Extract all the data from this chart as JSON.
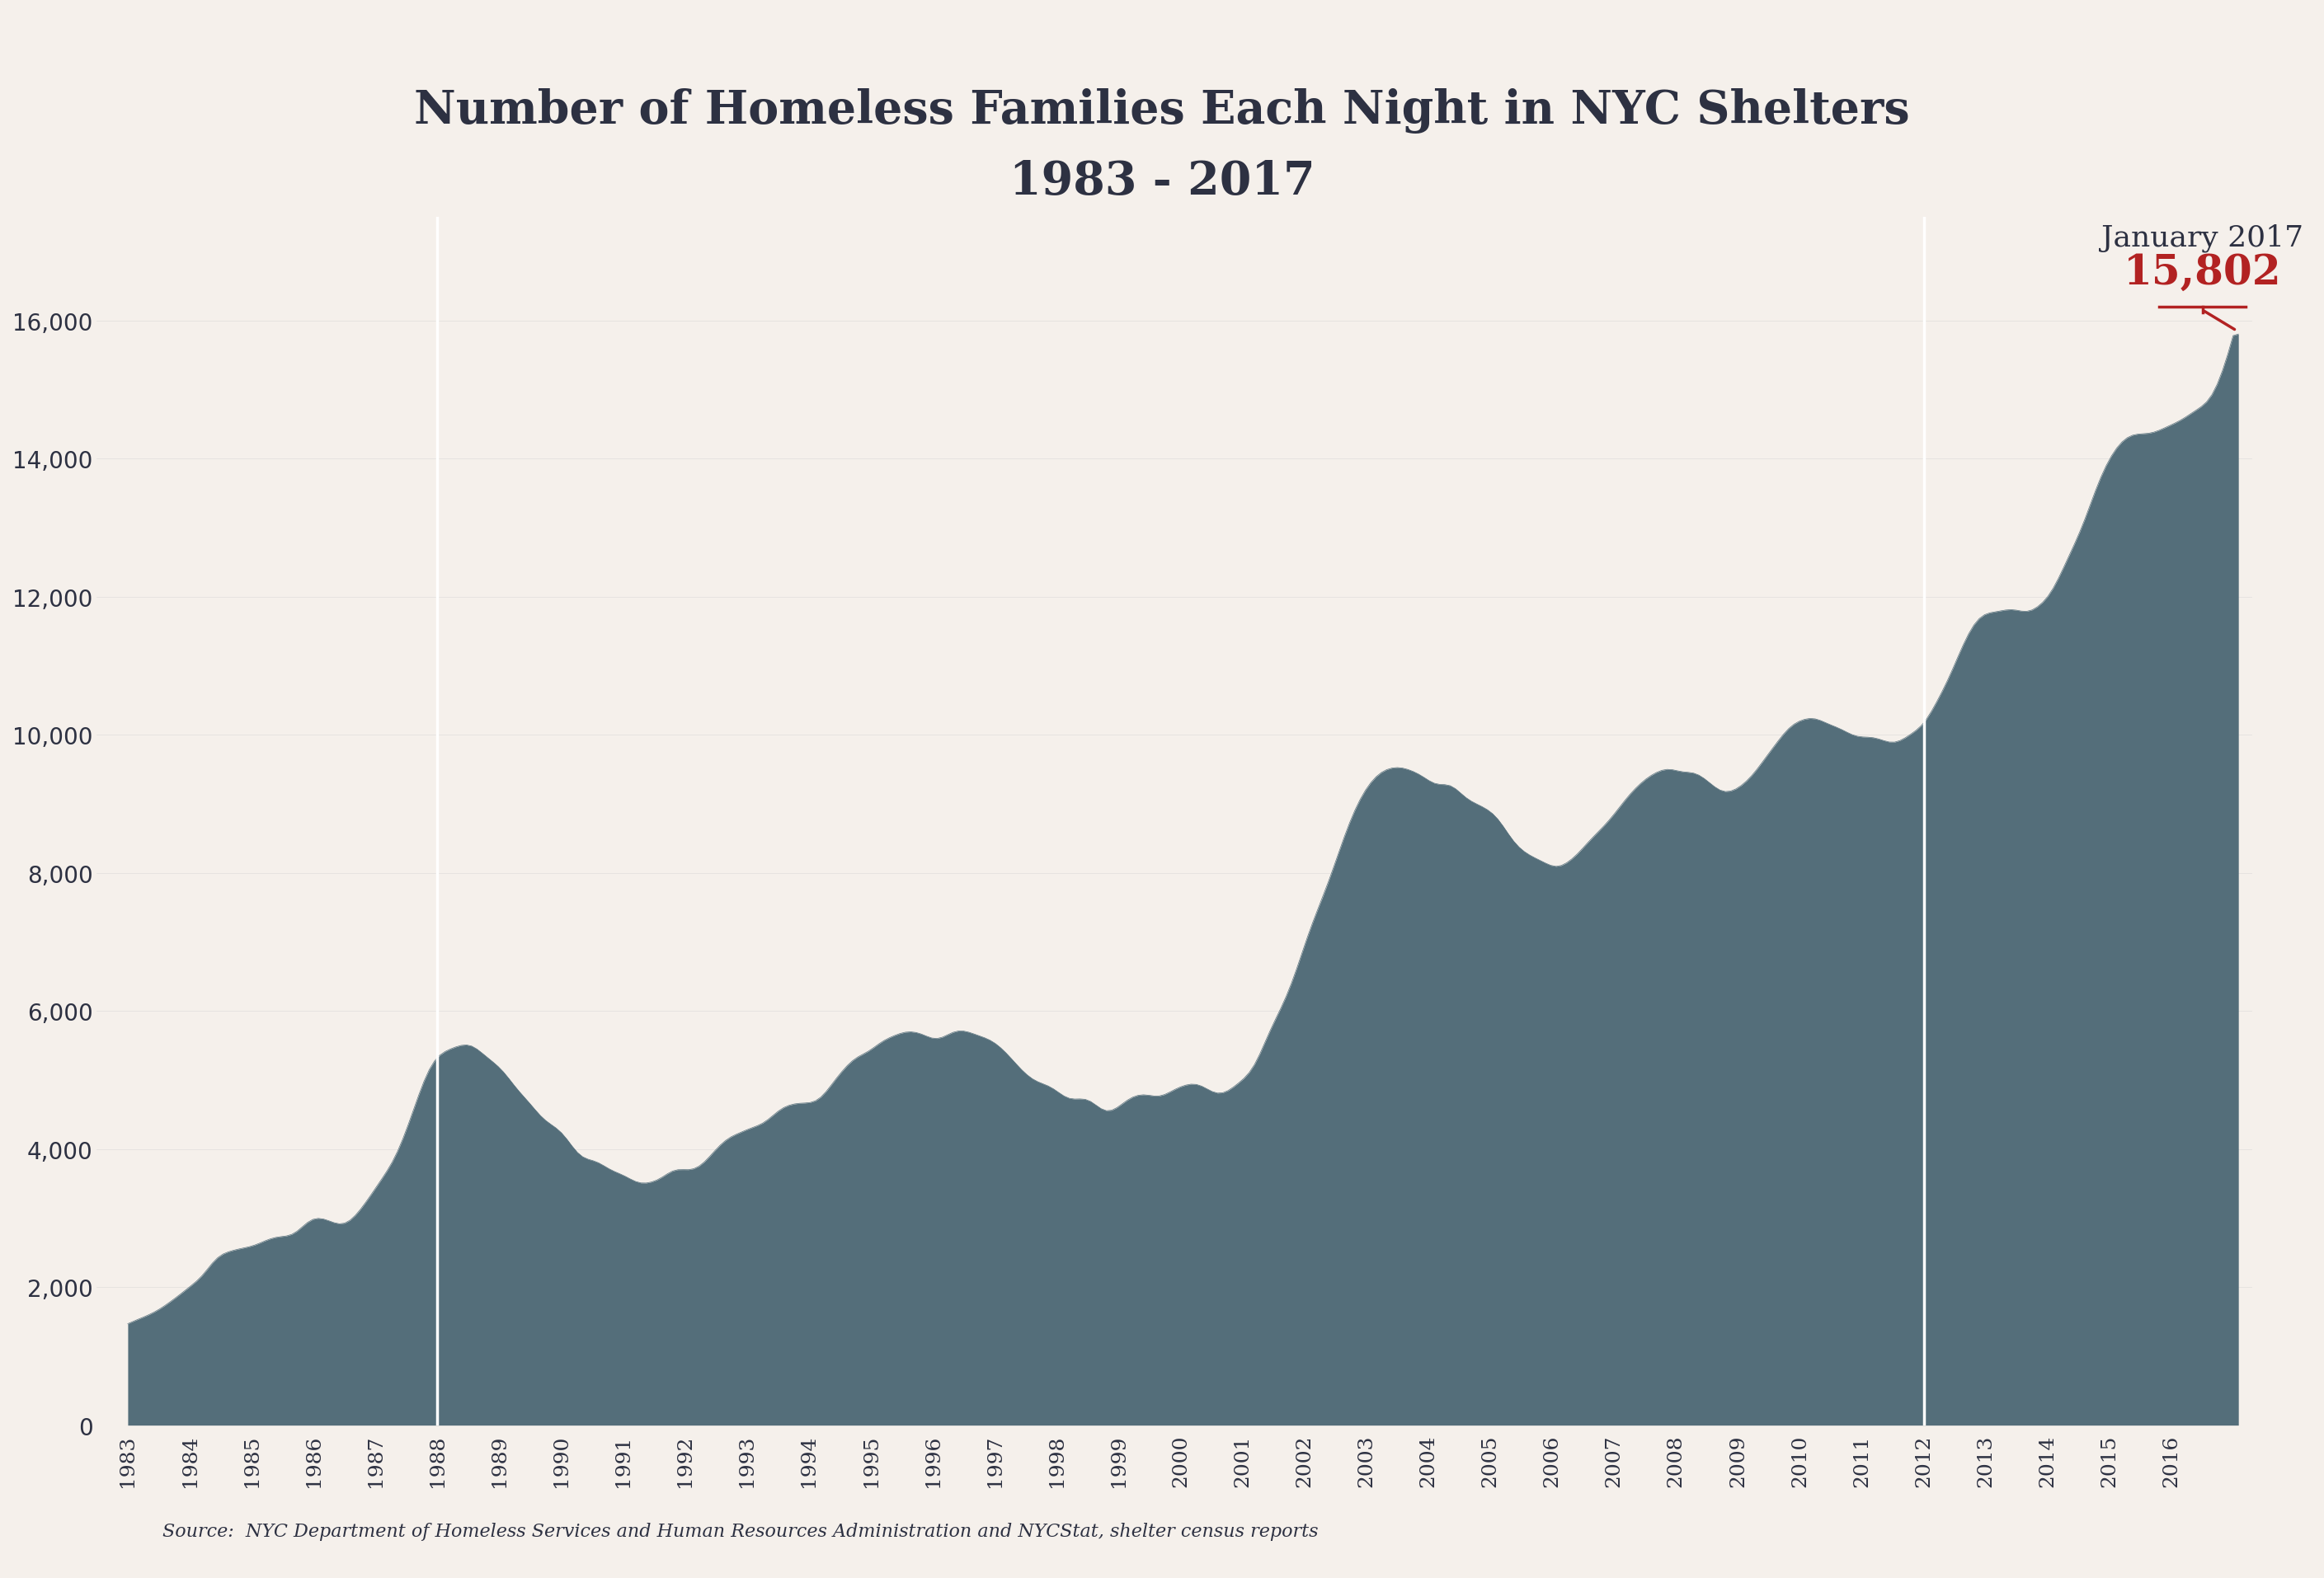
{
  "title_line1": "Number of Homeless Families Each Night in NYC Shelters",
  "title_line2": "1983 - 2017",
  "title_color": "#2d3142",
  "background_color": "#f5f0eb",
  "area_color": "#546e7a",
  "source_text": "Source:  NYC Department of Homeless Services and Human Resources Administration and NYCStat, shelter census reports",
  "annotation_label": "January 2017",
  "annotation_value": "15,802",
  "annotation_color": "#b22222",
  "annotation_label_color": "#2d3142",
  "vline_color": "#ffffff",
  "vlines_x": [
    1988.0,
    2012.0
  ],
  "ylim": [
    0,
    17500
  ],
  "yticks": [
    0,
    2000,
    4000,
    6000,
    8000,
    10000,
    12000,
    14000,
    16000
  ],
  "tick_color": "#2d3142",
  "years": [
    1983,
    1984,
    1985,
    1986,
    1987,
    1988,
    1989,
    1990,
    1991,
    1992,
    1993,
    1994,
    1995,
    1996,
    1997,
    1998,
    1999,
    2000,
    2001,
    2002,
    2003,
    2004,
    2005,
    2006,
    2007,
    2008,
    2009,
    2010,
    2011,
    2012,
    2013,
    2014,
    2015,
    2016,
    2017
  ],
  "values": [
    1500,
    2000,
    2600,
    3000,
    3300,
    5200,
    5200,
    4200,
    3600,
    3700,
    4300,
    4700,
    5400,
    5700,
    5500,
    4800,
    4700,
    4900,
    5000,
    7000,
    9200,
    9400,
    8800,
    8100,
    9000,
    9500,
    9200,
    10200,
    10000,
    10200,
    11800,
    12000,
    14000,
    14500,
    15802
  ],
  "monthly_data_x": [],
  "monthly_data_y": []
}
